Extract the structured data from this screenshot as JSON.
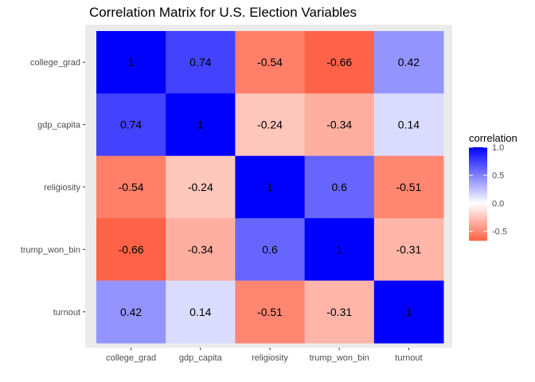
{
  "chart_data": {
    "type": "heatmap",
    "title": "Correlation Matrix for U.S. Election Variables",
    "x_categories": [
      "college_grad",
      "gdp_capita",
      "religiosity",
      "trump_won_bin",
      "turnout"
    ],
    "y_categories": [
      "college_grad",
      "gdp_capita",
      "religiosity",
      "trump_won_bin",
      "turnout"
    ],
    "values": [
      [
        1,
        0.74,
        -0.54,
        -0.66,
        0.42
      ],
      [
        0.74,
        1,
        -0.24,
        -0.34,
        0.14
      ],
      [
        -0.54,
        -0.24,
        1,
        0.6,
        -0.51
      ],
      [
        -0.66,
        -0.34,
        0.6,
        1,
        -0.31
      ],
      [
        0.42,
        0.14,
        -0.51,
        -0.31,
        1
      ]
    ],
    "labels": [
      [
        "1",
        "0.74",
        "-0.54",
        "-0.66",
        "0.42"
      ],
      [
        "0.74",
        "1",
        "-0.24",
        "-0.34",
        "0.14"
      ],
      [
        "-0.54",
        "-0.24",
        "1",
        "0.6",
        "-0.51"
      ],
      [
        "-0.66",
        "-0.34",
        "0.6",
        "1",
        "-0.31"
      ],
      [
        "0.42",
        "0.14",
        "-0.51",
        "-0.31",
        "1"
      ]
    ],
    "color_scale": {
      "low": "#ff6347",
      "mid": "#ffffff",
      "high": "#0000ff",
      "midpoint": 0,
      "limits": [
        -0.66,
        1
      ]
    },
    "legend": {
      "title": "correlation",
      "ticks": [
        1.0,
        0.5,
        0.0,
        -0.5
      ],
      "tick_labels": [
        "1.0",
        "0.5",
        "0.0",
        "-0.5"
      ],
      "position": "right"
    },
    "panel_background": "#ebebeb",
    "grid": true
  }
}
